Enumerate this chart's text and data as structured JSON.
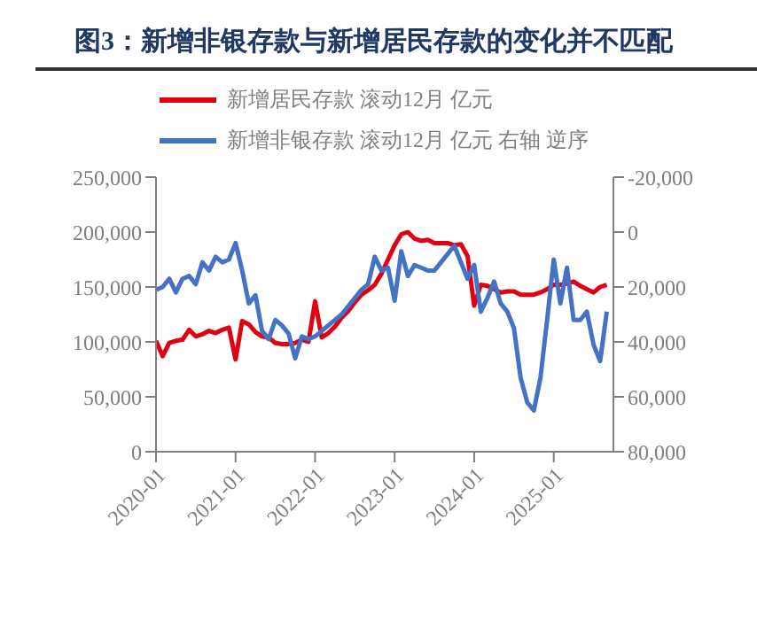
{
  "chart_data": {
    "type": "line",
    "title": "图3：新增非银存款与新增居民存款的变化并不匹配",
    "x": [
      "2020-01",
      "2020-02",
      "2020-03",
      "2020-04",
      "2020-05",
      "2020-06",
      "2020-07",
      "2020-08",
      "2020-09",
      "2020-10",
      "2020-11",
      "2020-12",
      "2021-01",
      "2021-02",
      "2021-03",
      "2021-04",
      "2021-05",
      "2021-06",
      "2021-07",
      "2021-08",
      "2021-09",
      "2021-10",
      "2021-11",
      "2021-12",
      "2022-01",
      "2022-02",
      "2022-03",
      "2022-04",
      "2022-05",
      "2022-06",
      "2022-07",
      "2022-08",
      "2022-09",
      "2022-10",
      "2022-11",
      "2022-12",
      "2023-01",
      "2023-02",
      "2023-03",
      "2023-04",
      "2023-05",
      "2023-06",
      "2023-07",
      "2023-08",
      "2023-09",
      "2023-10",
      "2023-11",
      "2023-12",
      "2024-01",
      "2024-02",
      "2024-03",
      "2024-04",
      "2024-05",
      "2024-06",
      "2024-07",
      "2024-08",
      "2024-09",
      "2024-10",
      "2024-11",
      "2024-12",
      "2025-01",
      "2025-02",
      "2025-03",
      "2025-04",
      "2025-05",
      "2025-06",
      "2025-07",
      "2025-08",
      "2025-09"
    ],
    "series": [
      {
        "name": "新增居民存款 滚动12月 亿元",
        "color": "#e00012",
        "values": [
          101000,
          87000,
          99000,
          101000,
          102000,
          111000,
          105000,
          107000,
          110000,
          108000,
          111000,
          113000,
          84000,
          119000,
          116000,
          109000,
          105000,
          104000,
          99000,
          98000,
          98000,
          99000,
          102000,
          100000,
          137000,
          104000,
          108000,
          114000,
          122000,
          128000,
          136000,
          143000,
          147000,
          152000,
          162000,
          175000,
          188000,
          198000,
          200000,
          194000,
          192000,
          193000,
          190000,
          190000,
          190000,
          188000,
          189000,
          178000,
          133000,
          152000,
          151000,
          148000,
          145000,
          146000,
          146000,
          143000,
          143000,
          143000,
          145000,
          148000,
          152000,
          152000,
          153000,
          155000,
          151000,
          148000,
          145000,
          150000,
          152000
        ]
      },
      {
        "name": "新增非银存款 滚动12月 亿元 右轴 逆序",
        "color": "#4472c4",
        "axis": "y2",
        "values": [
          21000,
          20000,
          17000,
          22000,
          17000,
          16000,
          19000,
          11000,
          14000,
          9000,
          11000,
          10000,
          4000,
          14000,
          26000,
          23000,
          36000,
          39000,
          32000,
          34000,
          37000,
          46000,
          38000,
          39000,
          38000,
          36000,
          34000,
          32000,
          30000,
          27000,
          24000,
          21000,
          19000,
          9000,
          14000,
          13000,
          25000,
          7000,
          16000,
          12000,
          13000,
          14000,
          14000,
          11000,
          8000,
          5000,
          11000,
          17000,
          12000,
          29000,
          24000,
          18000,
          26000,
          29000,
          35000,
          53000,
          62000,
          65000,
          53000,
          32000,
          10000,
          26000,
          13000,
          32000,
          32000,
          29000,
          41000,
          47000,
          29000
        ]
      }
    ],
    "xlim": [
      "2020-01",
      "2025-10"
    ],
    "xticks": [
      "2020-01",
      "2021-01",
      "2022-01",
      "2023-01",
      "2024-01",
      "2025-01"
    ],
    "ylim": [
      0,
      250000
    ],
    "yticks": [
      0,
      {
        "value": 50000,
        "label": "50,000"
      },
      {
        "value": 100000,
        "label": "100,000"
      },
      {
        "value": 150000,
        "label": "150,000"
      },
      {
        "value": 200000,
        "label": "200,000"
      },
      {
        "value": 250000,
        "label": "250,000"
      }
    ],
    "y2lim": [
      80000,
      -20000
    ],
    "y2ticks": [
      {
        "value": -20000,
        "label": "-20,000"
      },
      0,
      {
        "value": 20000,
        "label": "20,000"
      },
      {
        "value": 40000,
        "label": "40,000"
      },
      {
        "value": 60000,
        "label": "60,000"
      },
      {
        "value": 80000,
        "label": "80,000"
      }
    ],
    "legend": "top",
    "grid": false,
    "marker": "none",
    "line_style": "solid"
  }
}
